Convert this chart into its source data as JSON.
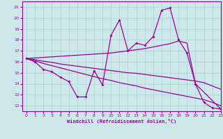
{
  "xlabel": "Windchill (Refroidissement éolien,°C)",
  "xlim": [
    -0.5,
    23
  ],
  "ylim": [
    11.5,
    21.5
  ],
  "yticks": [
    12,
    13,
    14,
    15,
    16,
    17,
    18,
    19,
    20,
    21
  ],
  "xticks": [
    0,
    1,
    2,
    3,
    4,
    5,
    6,
    7,
    8,
    9,
    10,
    11,
    12,
    13,
    14,
    15,
    16,
    17,
    18,
    19,
    20,
    21,
    22,
    23
  ],
  "bg_color": "#cce8e8",
  "grid_color": "#b0d8d8",
  "line_color": "#990099",
  "line1_x": [
    0,
    1,
    2,
    3,
    4,
    5,
    6,
    7,
    8,
    9,
    10,
    11,
    12,
    13,
    14,
    15,
    16,
    17,
    18,
    19,
    20,
    21,
    22,
    23
  ],
  "line1_y": [
    16.3,
    16.0,
    15.3,
    15.1,
    14.6,
    14.2,
    12.8,
    12.8,
    15.2,
    13.9,
    18.4,
    19.8,
    17.0,
    17.7,
    17.5,
    18.3,
    20.7,
    20.9,
    18.0,
    16.8,
    14.0,
    12.3,
    11.8,
    11.7
  ],
  "line2_x": [
    0,
    10,
    11,
    12,
    13,
    14,
    15,
    16,
    17,
    18,
    19,
    20,
    23
  ],
  "line2_y": [
    16.3,
    16.8,
    16.9,
    17.0,
    17.1,
    17.2,
    17.35,
    17.5,
    17.65,
    17.9,
    17.7,
    14.0,
    11.7
  ],
  "line3_x": [
    0,
    1,
    2,
    3,
    4,
    5,
    6,
    7,
    8,
    9,
    10,
    11,
    12,
    13,
    14,
    15,
    16,
    17,
    18,
    19,
    20,
    21,
    22,
    23
  ],
  "line3_y": [
    16.3,
    16.1,
    15.85,
    15.65,
    15.45,
    15.25,
    15.05,
    14.85,
    14.65,
    14.45,
    14.3,
    14.1,
    13.95,
    13.8,
    13.6,
    13.45,
    13.3,
    13.15,
    13.0,
    12.85,
    12.7,
    12.55,
    12.3,
    12.0
  ],
  "line4_x": [
    0,
    1,
    2,
    3,
    4,
    5,
    6,
    7,
    8,
    9,
    10,
    11,
    12,
    13,
    14,
    15,
    16,
    17,
    18,
    19,
    20,
    21,
    22,
    23
  ],
  "line4_y": [
    16.3,
    16.2,
    16.05,
    15.95,
    15.8,
    15.7,
    15.6,
    15.5,
    15.4,
    15.3,
    15.2,
    15.1,
    15.0,
    14.95,
    14.85,
    14.75,
    14.65,
    14.55,
    14.45,
    14.35,
    14.25,
    14.1,
    13.8,
    13.5
  ]
}
